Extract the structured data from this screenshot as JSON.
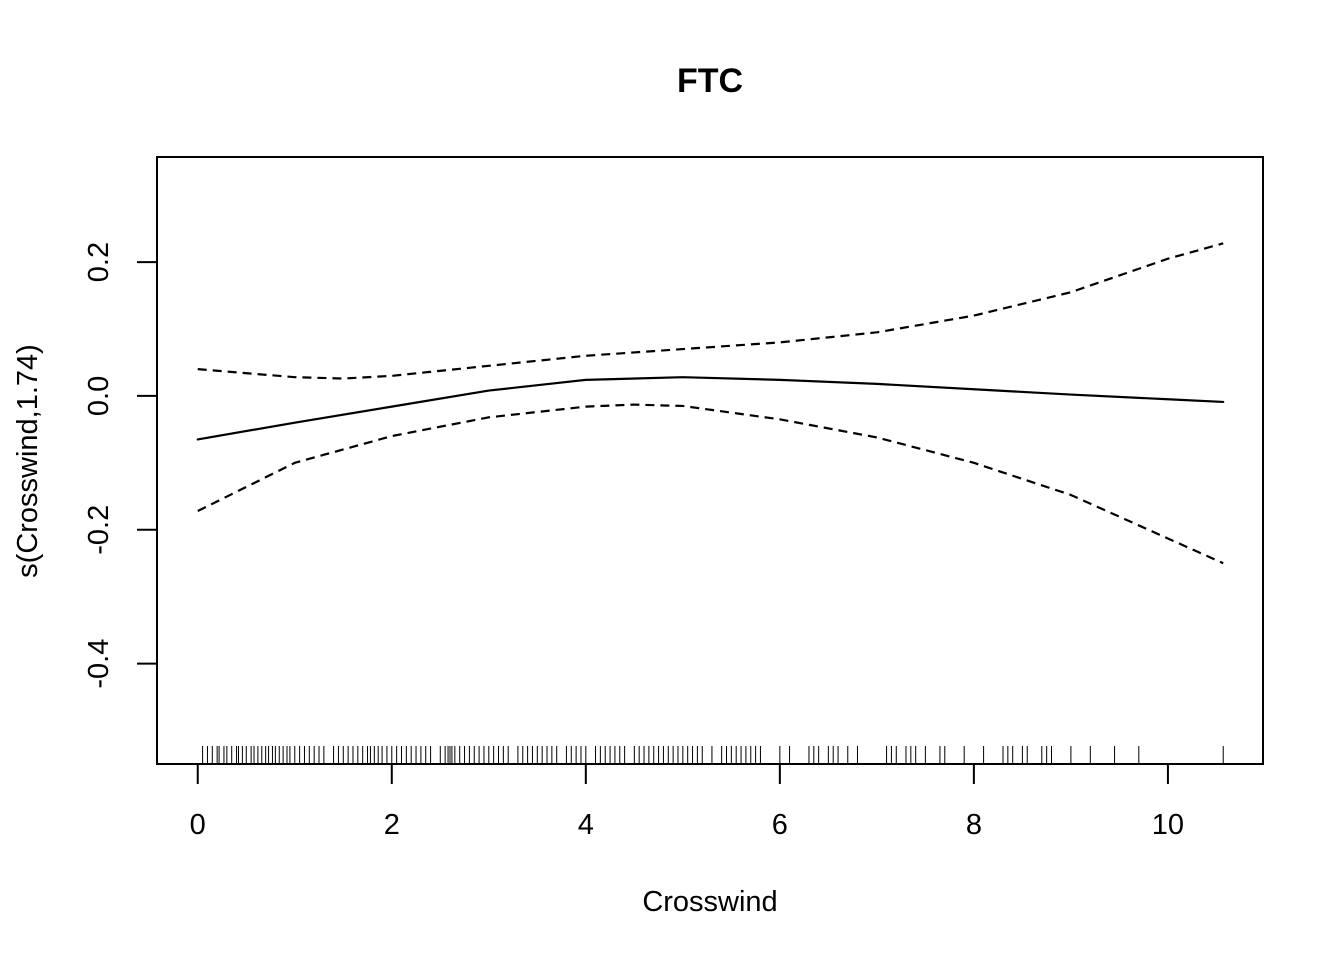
{
  "chart_data": {
    "type": "line",
    "title": "FTC",
    "xlabel": "Crosswind",
    "ylabel": "s(Crosswind,1.74)",
    "xlim": [
      -0.42,
      10.98
    ],
    "ylim": [
      -0.55,
      0.357
    ],
    "x_ticks": [
      0,
      2,
      4,
      6,
      8,
      10
    ],
    "x_tick_labels": [
      "0",
      "2",
      "4",
      "6",
      "8",
      "10"
    ],
    "y_ticks": [
      -0.4,
      -0.2,
      0.0,
      0.2
    ],
    "y_tick_labels": [
      "-0.4",
      "-0.2",
      "0.0",
      "0.2"
    ],
    "grid": false,
    "legend": "none",
    "series": [
      {
        "style": "solid",
        "x": [
          0,
          1,
          2,
          3,
          4,
          5,
          6,
          7,
          8,
          9,
          10,
          10.57
        ],
        "y": [
          -0.065,
          -0.04,
          -0.016,
          0.008,
          0.024,
          0.028,
          0.024,
          0.018,
          0.01,
          0.002,
          -0.005,
          -0.009
        ]
      },
      {
        "style": "dashed",
        "x": [
          0,
          1,
          1.5,
          2,
          3,
          4,
          5,
          6,
          7,
          8,
          9,
          10,
          10.57
        ],
        "y": [
          0.04,
          0.028,
          0.026,
          0.03,
          0.045,
          0.06,
          0.07,
          0.08,
          0.095,
          0.12,
          0.155,
          0.205,
          0.228
        ]
      },
      {
        "style": "dashed",
        "x": [
          0,
          1,
          2,
          3,
          4,
          4.5,
          5,
          6,
          7,
          8,
          9,
          10,
          10.57
        ],
        "y": [
          -0.172,
          -0.1,
          -0.06,
          -0.032,
          -0.016,
          -0.013,
          -0.015,
          -0.035,
          -0.062,
          -0.1,
          -0.148,
          -0.213,
          -0.25
        ]
      }
    ],
    "rug": [
      0.05,
      0.1,
      0.15,
      0.2,
      0.22,
      0.27,
      0.3,
      0.35,
      0.4,
      0.42,
      0.46,
      0.5,
      0.55,
      0.58,
      0.62,
      0.66,
      0.7,
      0.73,
      0.77,
      0.8,
      0.84,
      0.88,
      0.92,
      0.95,
      1.0,
      1.05,
      1.1,
      1.15,
      1.2,
      1.25,
      1.3,
      1.4,
      1.45,
      1.5,
      1.55,
      1.6,
      1.65,
      1.7,
      1.75,
      1.78,
      1.82,
      1.86,
      1.9,
      1.95,
      2.0,
      2.05,
      2.1,
      2.15,
      2.2,
      2.25,
      2.3,
      2.35,
      2.4,
      2.5,
      2.55,
      2.58,
      2.6,
      2.62,
      2.65,
      2.7,
      2.75,
      2.8,
      2.85,
      2.9,
      2.95,
      3.0,
      3.05,
      3.1,
      3.15,
      3.2,
      3.3,
      3.35,
      3.4,
      3.45,
      3.5,
      3.55,
      3.6,
      3.65,
      3.7,
      3.8,
      3.85,
      3.9,
      3.95,
      4.0,
      4.1,
      4.15,
      4.2,
      4.25,
      4.3,
      4.35,
      4.4,
      4.5,
      4.55,
      4.6,
      4.65,
      4.7,
      4.75,
      4.8,
      4.85,
      4.9,
      4.95,
      5.0,
      5.05,
      5.1,
      5.15,
      5.2,
      5.3,
      5.4,
      5.45,
      5.5,
      5.55,
      5.6,
      5.65,
      5.7,
      5.75,
      5.8,
      6.0,
      6.1,
      6.3,
      6.35,
      6.4,
      6.5,
      6.55,
      6.6,
      6.7,
      6.8,
      7.1,
      7.15,
      7.2,
      7.3,
      7.35,
      7.4,
      7.5,
      7.65,
      7.7,
      7.9,
      8.1,
      8.3,
      8.35,
      8.4,
      8.5,
      8.55,
      8.7,
      8.75,
      8.8,
      9.0,
      9.2,
      9.45,
      9.7,
      10.57
    ]
  }
}
